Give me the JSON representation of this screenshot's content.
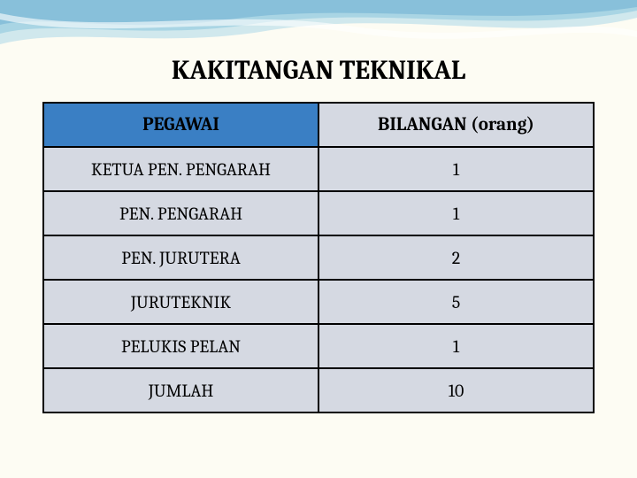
{
  "title": "KAKITANGAN TEKNIKAL",
  "table": {
    "type": "table",
    "columns": [
      "PEGAWAI",
      "BILANGAN (orang)"
    ],
    "rows": [
      [
        "KETUA PEN. PENGARAH",
        "1"
      ],
      [
        "PEN. PENGARAH",
        "1"
      ],
      [
        "PEN. JURUTERA",
        "2"
      ],
      [
        "JURUTEKNIK",
        "5"
      ],
      [
        "PELUKIS PELAN",
        "1"
      ],
      [
        "JUMLAH",
        "10"
      ]
    ],
    "header_bg_colors": [
      "#3a7fc4",
      "#d5d9e2"
    ],
    "row_bg": "#d5d9e2",
    "border_color": "#000000",
    "header_fontsize": 21,
    "cell_fontsize": 20,
    "col_widths": [
      "50%",
      "50%"
    ]
  },
  "background": {
    "page_color": "#fdfcf3",
    "wave_colors": [
      "#a3d4e8",
      "#6fb8d8",
      "#4a9cc8",
      "#ffffff"
    ]
  }
}
